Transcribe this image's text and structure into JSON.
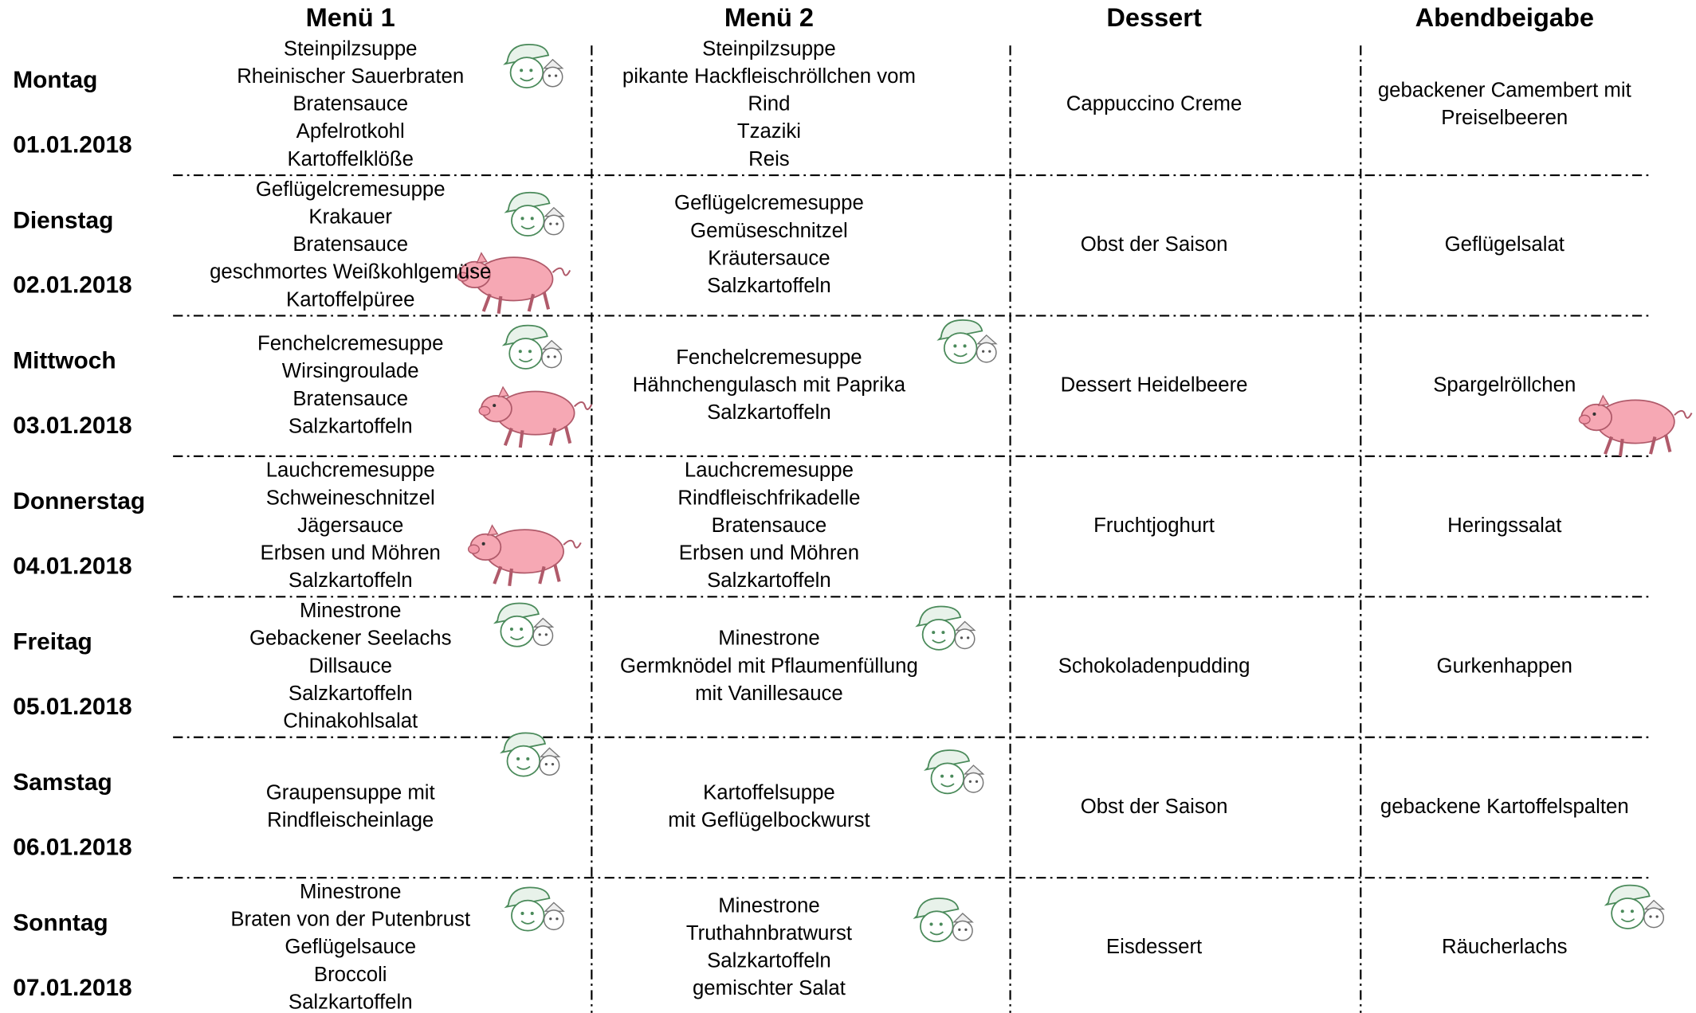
{
  "header": [
    "Menü 1",
    "Menü 2",
    "Dessert",
    "Abendbeigabe"
  ],
  "days": [
    {
      "day": "Montag",
      "date": "01.01.2018",
      "menu1": [
        "Steinpilzsuppe",
        "Rheinischer Sauerbraten",
        "Bratensauce",
        "Apfelrotkohl",
        "Kartoffelklöße"
      ],
      "menu2": [
        "Steinpilzsuppe",
        "pikante Hackfleischröllchen vom",
        "Rind",
        "Tzaziki",
        "Reis"
      ],
      "dessert": [
        "Cappuccino Creme"
      ],
      "evening": [
        "gebackener Camembert mit",
        "Preiselbeeren"
      ]
    },
    {
      "day": "Dienstag",
      "date": "02.01.2018",
      "menu1": [
        "Geflügelcremesuppe",
        "Krakauer",
        "Bratensauce",
        "geschmortes Weißkohlgemüse",
        "Kartoffelpüree"
      ],
      "menu2": [
        "Geflügelcremesuppe",
        "Gemüseschnitzel",
        "Kräutersauce",
        "Salzkartoffeln"
      ],
      "dessert": [
        "Obst der Saison"
      ],
      "evening": [
        "Geflügelsalat"
      ]
    },
    {
      "day": "Mittwoch",
      "date": "03.01.2018",
      "menu1": [
        "Fenchelcremesuppe",
        "Wirsingroulade",
        "Bratensauce",
        "Salzkartoffeln"
      ],
      "menu2": [
        "Fenchelcremesuppe",
        "Hähnchengulasch mit Paprika",
        "Salzkartoffeln"
      ],
      "dessert": [
        "Dessert Heidelbeere"
      ],
      "evening": [
        "Spargelröllchen"
      ]
    },
    {
      "day": "Donnerstag",
      "date": "04.01.2018",
      "menu1": [
        "Lauchcremesuppe",
        "Schweineschnitzel",
        "Jägersauce",
        "Erbsen und Möhren",
        "Salzkartoffeln"
      ],
      "menu2": [
        "Lauchcremesuppe",
        "Rindfleischfrikadelle",
        "Bratensauce",
        "Erbsen und Möhren",
        "Salzkartoffeln"
      ],
      "dessert": [
        "Fruchtjoghurt"
      ],
      "evening": [
        "Heringssalat"
      ]
    },
    {
      "day": "Freitag",
      "date": "05.01.2018",
      "menu1": [
        "Minestrone",
        "Gebackener Seelachs",
        "Dillsauce",
        "Salzkartoffeln",
        "Chinakohlsalat"
      ],
      "menu2": [
        "Minestrone",
        "Germknödel mit Pflaumenfüllung",
        "mit Vanillesauce"
      ],
      "dessert": [
        "Schokoladenpudding"
      ],
      "evening": [
        "Gurkenhappen"
      ]
    },
    {
      "day": "Samstag",
      "date": "06.01.2018",
      "menu1": [
        "Graupensuppe mit",
        "Rindfleischeinlage"
      ],
      "menu2": [
        "Kartoffelsuppe",
        "mit Geflügelbockwurst"
      ],
      "dessert": [
        "Obst der Saison"
      ],
      "evening": [
        "gebackene Kartoffelspalten"
      ]
    },
    {
      "day": "Sonntag",
      "date": "07.01.2018",
      "menu1": [
        "Minestrone",
        "Braten von der Putenbrust",
        "Geflügelsauce",
        "Broccoli",
        "Salzkartoffeln"
      ],
      "menu2": [
        "Minestrone",
        "Truthahnbratwurst",
        "Salzkartoffeln",
        "gemischter Salat"
      ],
      "dessert": [
        "Eisdessert"
      ],
      "evening": [
        "Räucherlachs"
      ]
    }
  ]
}
